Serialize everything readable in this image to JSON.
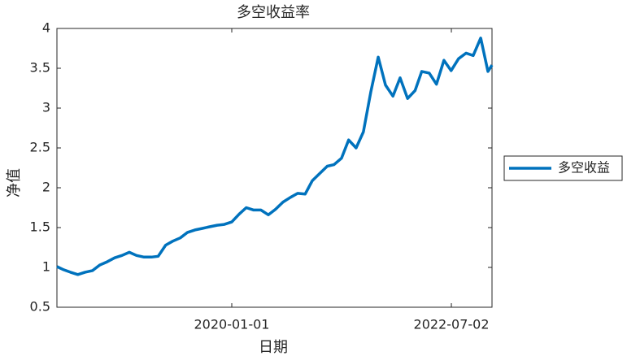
{
  "chart_data": {
    "type": "line",
    "title": "多空收益率",
    "xlabel": "日期",
    "ylabel": "净值",
    "x": [
      "2018-01-04",
      "2018-02-01",
      "2018-03-01",
      "2018-04-01",
      "2018-05-01",
      "2018-06-01",
      "2018-07-01",
      "2018-08-01",
      "2018-09-01",
      "2018-10-01",
      "2018-11-01",
      "2018-12-01",
      "2019-01-01",
      "2019-02-01",
      "2019-03-01",
      "2019-04-01",
      "2019-05-01",
      "2019-06-01",
      "2019-07-01",
      "2019-08-01",
      "2019-09-01",
      "2019-10-01",
      "2019-11-01",
      "2019-12-01",
      "2020-01-01",
      "2020-02-01",
      "2020-03-01",
      "2020-04-01",
      "2020-05-01",
      "2020-06-01",
      "2020-07-01",
      "2020-08-01",
      "2020-09-01",
      "2020-10-01",
      "2020-11-01",
      "2020-12-01",
      "2021-01-01",
      "2021-02-01",
      "2021-03-01",
      "2021-04-01",
      "2021-05-01",
      "2021-06-01",
      "2021-07-01",
      "2021-08-01",
      "2021-09-01",
      "2021-10-01",
      "2021-11-01",
      "2021-12-01",
      "2022-01-01",
      "2022-02-01",
      "2022-03-01",
      "2022-04-01",
      "2022-05-01",
      "2022-06-01",
      "2022-07-01",
      "2022-08-01",
      "2022-09-01",
      "2022-10-01",
      "2022-11-01",
      "2022-12-01",
      "2022-12-18"
    ],
    "series": [
      {
        "name": "多空收益",
        "color": "#0072bd",
        "values": [
          1.01,
          0.97,
          0.94,
          0.91,
          0.94,
          0.96,
          1.03,
          1.07,
          1.12,
          1.15,
          1.19,
          1.15,
          1.13,
          1.13,
          1.14,
          1.28,
          1.33,
          1.37,
          1.44,
          1.47,
          1.49,
          1.51,
          1.53,
          1.54,
          1.57,
          1.67,
          1.75,
          1.72,
          1.72,
          1.66,
          1.73,
          1.82,
          1.88,
          1.93,
          1.92,
          2.09,
          2.18,
          2.27,
          2.29,
          2.37,
          2.6,
          2.5,
          2.7,
          3.2,
          3.64,
          3.29,
          3.15,
          3.38,
          3.12,
          3.22,
          3.46,
          3.44,
          3.3,
          3.6,
          3.47,
          3.62,
          3.69,
          3.66,
          3.88,
          3.46,
          3.54
        ]
      }
    ],
    "xlim": [
      "2018-01-04",
      "2022-12-18"
    ],
    "xticks": [
      "2020-01-01",
      "2022-07-02"
    ],
    "ylim": [
      0.5,
      4
    ],
    "yticks": [
      0.5,
      1,
      1.5,
      2,
      2.5,
      3,
      3.5,
      4
    ],
    "legend_position": "outside-right"
  }
}
